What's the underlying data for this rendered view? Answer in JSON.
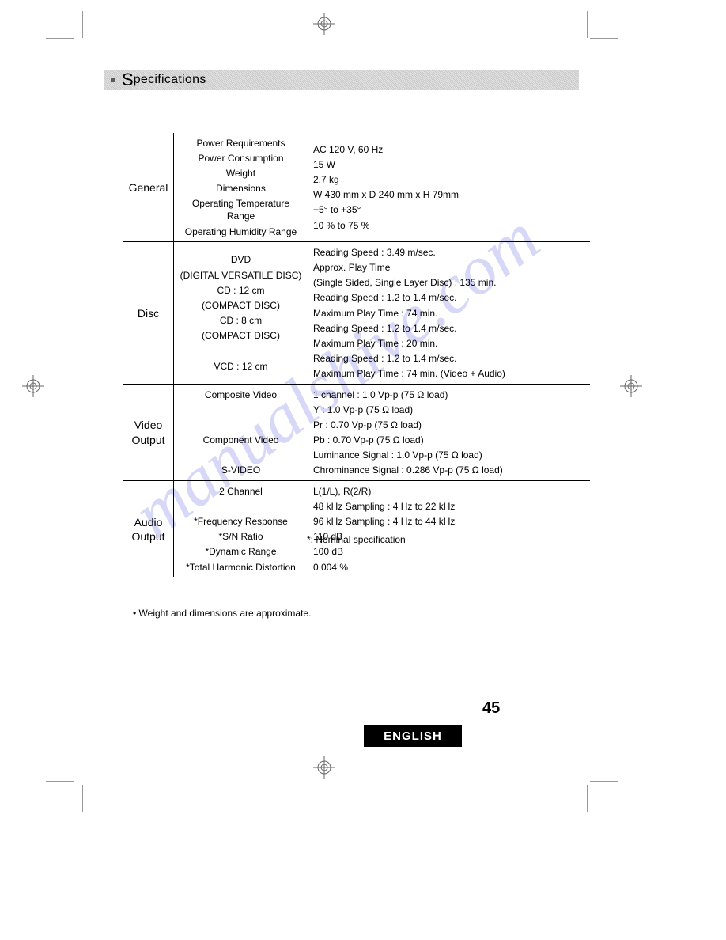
{
  "title": {
    "s": "S",
    "rest": "pecifications"
  },
  "page_number": "45",
  "language_box": "ENGLISH",
  "footnote_nominal": "*: Nominal specification",
  "footnote_weight": "• Weight and dimensions are approximate.",
  "watermark_text": "manualshive.com",
  "dotted_top": "· · · · · · · · ·· ·· ·· ········ ······ · ·  · ···· · ·  ················································",
  "sections": [
    {
      "category": "General",
      "labels": [
        "Power Requirements",
        "Power Consumption",
        "Weight",
        "Dimensions",
        "Operating Temperature Range",
        "Operating Humidity Range"
      ],
      "values": [
        "AC 120 V, 60 Hz",
        "15 W",
        "2.7  kg",
        "W 430 mm x D 240 mm x H 79mm",
        "+5°  to +35° ",
        "10 % to 75 %"
      ]
    },
    {
      "category": "Disc",
      "labels": [
        "DVD",
        "(DIGITAL VERSATILE DISC)",
        "CD : 12 cm",
        "(COMPACT DISC)",
        "CD : 8 cm",
        "(COMPACT DISC)",
        "",
        "VCD : 12 cm"
      ],
      "values": [
        "Reading Speed : 3.49 m/sec.",
        "Approx. Play Time",
        "(Single Sided, Single Layer Disc) : 135 min.",
        "Reading Speed : 1.2 to 1.4 m/sec.",
        "Maximum Play Time : 74 min.",
        "Reading Speed :  1.2 to 1.4 m/sec.",
        "Maximum Play Time : 20 min.",
        "Reading Speed :  1.2 to 1.4 m/sec.",
        "Maximum Play Time : 74 min. (Video + Audio)"
      ]
    },
    {
      "category": "Video Output",
      "category_lines": [
        "Video",
        "Output"
      ],
      "labels": [
        "Composite Video",
        "",
        "",
        "Component Video",
        "",
        "S-VIDEO"
      ],
      "values": [
        "1 channel : 1.0 Vp-p (75 Ω load)",
        "Y : 1.0 Vp-p (75 Ω load)",
        "Pr : 0.70 Vp-p (75 Ω load)",
        "Pb : 0.70 Vp-p (75 Ω load)",
        "Luminance Signal : 1.0 Vp-p (75 Ω load)",
        "Chrominance Signal : 0.286 Vp-p (75 Ω load)"
      ]
    },
    {
      "category": "Audio Output",
      "category_lines": [
        "Audio",
        "Output"
      ],
      "labels": [
        "2 Channel",
        "",
        "*Frequency Response",
        "*S/N Ratio",
        "*Dynamic Range",
        "*Total Harmonic Distortion"
      ],
      "values": [
        "L(1/L), R(2/R)",
        "48 kHz Sampling : 4 Hz to 22 kHz",
        "96 kHz Sampling : 4 Hz to 44 kHz",
        "110 dB",
        "100 dB",
        "0.004 %"
      ]
    }
  ]
}
